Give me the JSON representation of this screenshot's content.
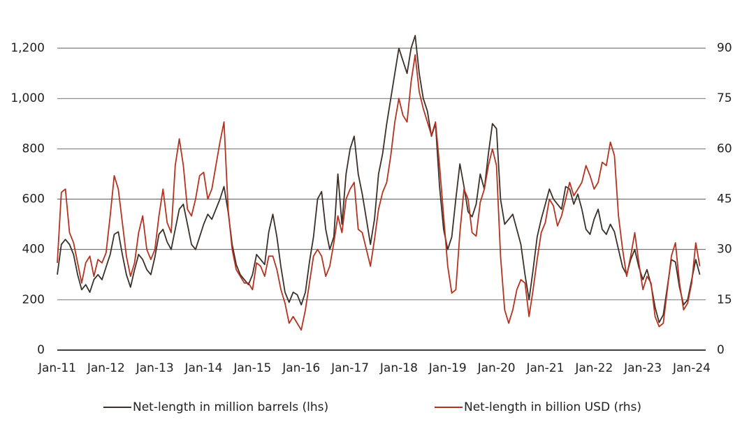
{
  "chart_data": {
    "type": "line",
    "categories": [
      "Jan-11",
      null,
      null,
      null,
      null,
      null,
      null,
      null,
      null,
      null,
      null,
      null,
      "Jan-12",
      null,
      null,
      null,
      null,
      null,
      null,
      null,
      null,
      null,
      null,
      null,
      "Jan-13",
      null,
      null,
      null,
      null,
      null,
      null,
      null,
      null,
      null,
      null,
      null,
      "Jan-14",
      null,
      null,
      null,
      null,
      null,
      null,
      null,
      null,
      null,
      null,
      null,
      "Jan-15",
      null,
      null,
      null,
      null,
      null,
      null,
      null,
      null,
      null,
      null,
      null,
      "Jan-16",
      null,
      null,
      null,
      null,
      null,
      null,
      null,
      null,
      null,
      null,
      null,
      "Jan-17",
      null,
      null,
      null,
      null,
      null,
      null,
      null,
      null,
      null,
      null,
      null,
      "Jan-18",
      null,
      null,
      null,
      null,
      null,
      null,
      null,
      null,
      null,
      null,
      null,
      "Jan-19",
      null,
      null,
      null,
      null,
      null,
      null,
      null,
      null,
      null,
      null,
      null,
      "Jan-20",
      null,
      null,
      null,
      null,
      null,
      null,
      null,
      null,
      null,
      null,
      null,
      "Jan-21",
      null,
      null,
      null,
      null,
      null,
      null,
      null,
      null,
      null,
      null,
      null,
      "Jan-22",
      null,
      null,
      null,
      null,
      null,
      null,
      null,
      null,
      null,
      null,
      null,
      "Jan-23",
      null,
      null,
      null,
      null,
      null,
      null,
      null,
      null,
      null,
      null,
      null,
      "Jan-24",
      null,
      null
    ],
    "series": [
      {
        "name": "Net-length in million barrels (lhs)",
        "color": "#3b3028",
        "axis": "y",
        "values": [
          300,
          420,
          440,
          420,
          380,
          300,
          240,
          260,
          230,
          280,
          300,
          280,
          330,
          380,
          460,
          470,
          380,
          300,
          250,
          320,
          380,
          360,
          320,
          300,
          370,
          460,
          480,
          430,
          400,
          480,
          560,
          580,
          500,
          420,
          400,
          450,
          500,
          540,
          520,
          560,
          600,
          650,
          550,
          420,
          340,
          300,
          280,
          260,
          300,
          380,
          360,
          340,
          470,
          540,
          450,
          330,
          230,
          190,
          230,
          220,
          180,
          230,
          350,
          450,
          600,
          630,
          480,
          400,
          450,
          700,
          500,
          700,
          800,
          850,
          700,
          620,
          520,
          420,
          520,
          700,
          780,
          900,
          1000,
          1100,
          1200,
          1150,
          1100,
          1200,
          1250,
          1100,
          1000,
          950,
          850,
          900,
          650,
          480,
          400,
          450,
          600,
          740,
          650,
          550,
          530,
          580,
          700,
          640,
          780,
          900,
          880,
          600,
          500,
          520,
          540,
          480,
          420,
          300,
          200,
          320,
          450,
          520,
          580,
          640,
          600,
          580,
          560,
          650,
          640,
          580,
          620,
          560,
          480,
          460,
          520,
          560,
          480,
          460,
          500,
          470,
          400,
          330,
          300,
          360,
          400,
          330,
          280,
          320,
          260,
          170,
          110,
          140,
          250,
          360,
          350,
          250,
          180,
          200,
          280,
          360,
          300
        ]
      },
      {
        "name": "Net-length in billion USD (rhs)",
        "color": "#b5321f",
        "axis": "y2",
        "values": [
          26,
          47,
          48,
          35,
          32,
          26,
          20,
          26,
          28,
          22,
          27,
          26,
          29,
          40,
          52,
          48,
          38,
          28,
          22,
          26,
          35,
          40,
          30,
          27,
          30,
          40,
          48,
          38,
          35,
          55,
          63,
          55,
          42,
          40,
          45,
          52,
          53,
          45,
          48,
          55,
          62,
          68,
          42,
          30,
          24,
          22,
          20,
          20,
          18,
          26,
          25,
          22,
          28,
          28,
          24,
          18,
          14,
          8,
          10,
          8,
          6,
          12,
          20,
          28,
          30,
          28,
          22,
          25,
          32,
          40,
          35,
          45,
          48,
          50,
          36,
          35,
          30,
          25,
          33,
          42,
          47,
          50,
          58,
          68,
          75,
          70,
          68,
          80,
          88,
          77,
          72,
          68,
          64,
          68,
          55,
          40,
          25,
          17,
          18,
          35,
          48,
          45,
          35,
          34,
          44,
          48,
          55,
          60,
          55,
          28,
          12,
          8,
          12,
          18,
          21,
          20,
          10,
          18,
          27,
          35,
          38,
          45,
          43,
          37,
          40,
          45,
          50,
          46,
          48,
          50,
          55,
          52,
          48,
          50,
          56,
          55,
          62,
          58,
          40,
          30,
          22,
          28,
          35,
          26,
          18,
          22,
          20,
          10,
          7,
          8,
          18,
          28,
          32,
          20,
          12,
          14,
          20,
          32,
          25
        ]
      }
    ],
    "ylim": [
      0,
      1300
    ],
    "yticks": [
      0,
      200,
      400,
      600,
      800,
      {
        "value": 1000,
        "label": "1,000"
      },
      {
        "value": 1200,
        "label": "1,200"
      }
    ],
    "y2lim": [
      0,
      97.5
    ],
    "y2ticks": [
      0,
      15,
      30,
      45,
      60,
      75,
      90
    ],
    "grid": true,
    "legend": "bottom"
  }
}
